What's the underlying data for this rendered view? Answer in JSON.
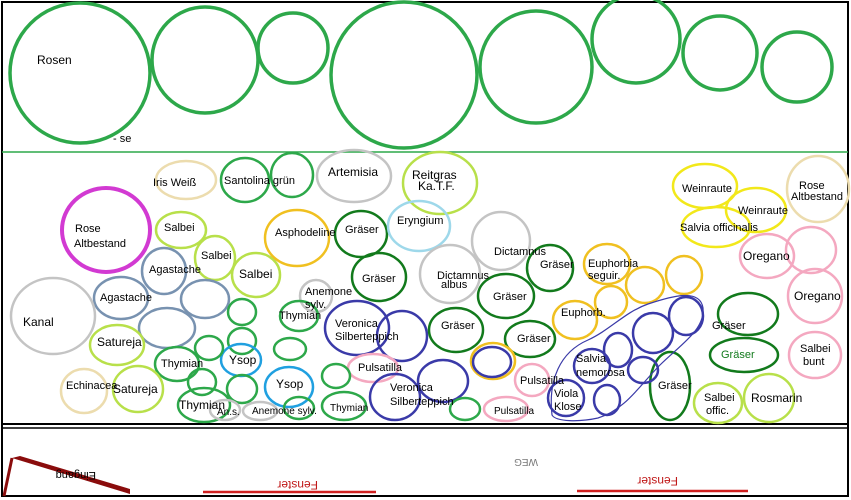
{
  "plan": {
    "labels": {
      "rosen": "Rosen",
      "hse": "- se",
      "iris": "Iris Weiß",
      "santolina": "Santolina grün",
      "artemisia": "Artemisia",
      "reitgras1": "Reitgras",
      "reitgras2": "Ka.T.F.",
      "weinraute1": "Weinraute",
      "weinraute2": "Weinraute",
      "rose_alt_r1": "Rose",
      "rose_alt_r2": "Altbestand",
      "rose_alt_l1": "Rose",
      "rose_alt_l2": "Altbestand",
      "salbei1": "Salbei",
      "salbei2": "Salbei",
      "salbei3": "Salbei",
      "asphodeline": "Asphodeline",
      "graeser1": "Gräser",
      "eryngium": "Eryngium",
      "dictamnus1": "Dictamnus",
      "graeser2": "Gräser",
      "euphorbia1a": "Euphorbia",
      "euphorbia1b": "seguir.",
      "salvia_off": "Salvia officinalis",
      "oregano1": "Oregano",
      "agastache1": "Agastache",
      "agastache2": "Agastache",
      "graeser3": "Gräser",
      "dictamnus2a": "Dictamnus",
      "dictamnus2b": "albus",
      "graeser4": "Gräser",
      "oregano2": "Oregano",
      "kanal": "Kanal",
      "anemone1a": "Anemone",
      "anemone1b": "sylv.",
      "thymian1": "Thymian",
      "veronica1a": "Veronica",
      "veronica1b": "Silberteppich",
      "graeser5": "Gräser",
      "euphorbia2": "Euphorb.",
      "graeser6": "Gräser",
      "graeser7": "Gräser",
      "graeser8": "Gräser",
      "satureja1": "Satureja",
      "thymian2": "Thymian",
      "ysop1": "Ysop",
      "pulsatilla1": "Pulsatilla",
      "salvia_nem1": "Salvia",
      "salvia_nem2": "nemorosa",
      "salbei_bunt1": "Salbei",
      "salbei_bunt2": "bunt",
      "echinacea": "Echinacea",
      "satureja2": "Satureja",
      "ysop2": "Ysop",
      "veronica2a": "Veronica",
      "veronica2b": "Silberteppich",
      "pulsatilla2": "Pulsatilla",
      "viola1": "Viola",
      "viola2": "Klose",
      "graeser9": "Gräser",
      "salbei_off1": "Salbei",
      "salbei_off2": "offic.",
      "rosmarin": "Rosmarin",
      "thymian3": "Thymian",
      "ans": "An.s.",
      "anemone2": "Anemone sylv.",
      "thymian4": "Thymian",
      "pulsatilla3": "Pulsatilla",
      "eingang": "Eingang",
      "weg": "WEG",
      "fenster1": "Fenster",
      "fenster2": "Fenster"
    },
    "colors": {
      "green": "#2da84a",
      "darkgreen": "#127a1c",
      "grey": "#c4c4c4",
      "blue": "#3a3aa8",
      "steel": "#7892b0",
      "yellow": "#f0c020",
      "bright_yellow": "#f2e81a",
      "lime": "#b8e04a",
      "pink": "#f4a8c0",
      "magenta": "#d23ad2",
      "beige": "#ecdcae",
      "lightblue": "#9ed8ea",
      "cyan": "#20a0e0",
      "border": "#000000",
      "fenster": "#d02020",
      "eingang": "#8a0c0c"
    }
  }
}
